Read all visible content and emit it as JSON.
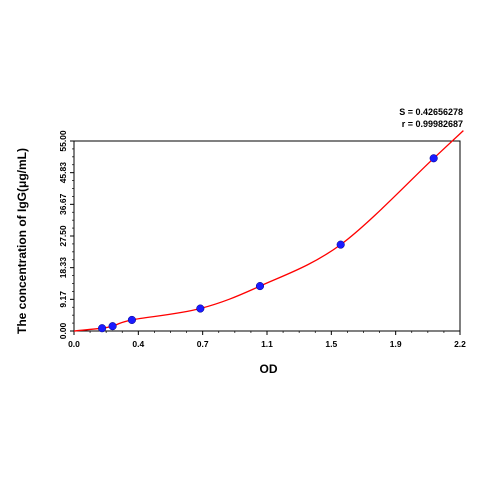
{
  "chart_data": {
    "type": "scatter",
    "xlabel": "OD",
    "ylabel": "The concentration of IgG(μg/mL)",
    "x_ticks": [
      "0.0",
      "0.4",
      "0.7",
      "1.1",
      "1.5",
      "1.9",
      "2.2"
    ],
    "y_ticks": [
      "0.00",
      "9.17",
      "18.33",
      "27.50",
      "36.67",
      "45.83",
      "55.00"
    ],
    "xlim": [
      0,
      2.2
    ],
    "ylim": [
      0,
      55
    ],
    "grid": false,
    "annotations": [
      "S = 0.42656278",
      "r = 0.99982687"
    ],
    "series": [
      {
        "points": [
          {
            "x": 0.16,
            "y": 0.8
          },
          {
            "x": 0.22,
            "y": 1.4
          },
          {
            "x": 0.33,
            "y": 3.2
          },
          {
            "x": 0.72,
            "y": 6.5
          },
          {
            "x": 1.06,
            "y": 13.0
          },
          {
            "x": 1.52,
            "y": 25.0
          },
          {
            "x": 2.05,
            "y": 50.0
          }
        ],
        "marker_color": "#1a1aff",
        "fit_color": "#ff0000"
      }
    ]
  }
}
